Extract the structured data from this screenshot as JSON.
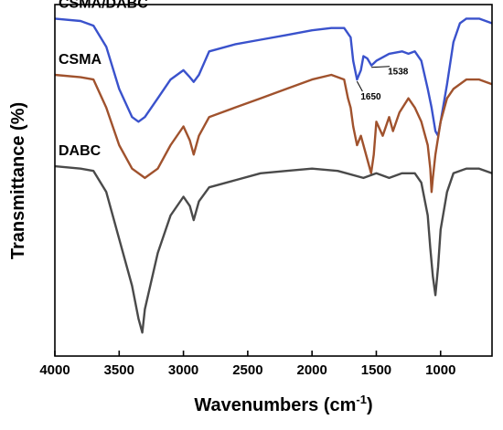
{
  "chart_data": {
    "type": "line",
    "title": "",
    "xlabel": "Wavenumbers (cm",
    "xlabel_sup": "-1",
    "xlabel_close": ")",
    "ylabel": "Transmittance (%)",
    "xlim": [
      4000,
      600
    ],
    "x_reversed": true,
    "y_ticks_shown": false,
    "xticks": [
      4000,
      3500,
      3000,
      2500,
      2000,
      1500,
      1000
    ],
    "xtick_labels": [
      "4000",
      "3500",
      "3000",
      "2500",
      "2000",
      "1500",
      "1000"
    ],
    "series": [
      {
        "name": "CSMA/DABC",
        "color": "#3a52cc",
        "points": [
          [
            4000,
            97
          ],
          [
            3800,
            96.5
          ],
          [
            3700,
            95.5
          ],
          [
            3600,
            91
          ],
          [
            3500,
            82
          ],
          [
            3400,
            76
          ],
          [
            3350,
            75
          ],
          [
            3300,
            76
          ],
          [
            3200,
            80
          ],
          [
            3100,
            84
          ],
          [
            3000,
            86
          ],
          [
            2950,
            84.5
          ],
          [
            2920,
            83.5
          ],
          [
            2880,
            85
          ],
          [
            2800,
            90
          ],
          [
            2600,
            91.5
          ],
          [
            2400,
            92.5
          ],
          [
            2200,
            93.5
          ],
          [
            2000,
            94.5
          ],
          [
            1850,
            95
          ],
          [
            1750,
            95
          ],
          [
            1700,
            93
          ],
          [
            1680,
            88
          ],
          [
            1650,
            84
          ],
          [
            1620,
            86
          ],
          [
            1600,
            89
          ],
          [
            1570,
            88.5
          ],
          [
            1538,
            87
          ],
          [
            1500,
            88
          ],
          [
            1400,
            89.5
          ],
          [
            1300,
            90
          ],
          [
            1250,
            89.5
          ],
          [
            1200,
            90
          ],
          [
            1150,
            88
          ],
          [
            1100,
            82
          ],
          [
            1070,
            78
          ],
          [
            1040,
            73
          ],
          [
            1020,
            72
          ],
          [
            1000,
            75
          ],
          [
            950,
            83
          ],
          [
            900,
            92
          ],
          [
            850,
            96
          ],
          [
            800,
            97
          ],
          [
            700,
            97
          ],
          [
            600,
            96
          ]
        ]
      },
      {
        "name": "CSMA",
        "color": "#a0522d",
        "points": [
          [
            4000,
            85
          ],
          [
            3800,
            84.5
          ],
          [
            3700,
            84
          ],
          [
            3600,
            78
          ],
          [
            3500,
            70
          ],
          [
            3400,
            65
          ],
          [
            3300,
            63
          ],
          [
            3200,
            65
          ],
          [
            3100,
            70
          ],
          [
            3000,
            74
          ],
          [
            2950,
            71
          ],
          [
            2920,
            68
          ],
          [
            2880,
            72
          ],
          [
            2800,
            76
          ],
          [
            2600,
            78
          ],
          [
            2400,
            80
          ],
          [
            2200,
            82
          ],
          [
            2000,
            84
          ],
          [
            1850,
            85
          ],
          [
            1750,
            84
          ],
          [
            1720,
            80
          ],
          [
            1700,
            78
          ],
          [
            1680,
            74
          ],
          [
            1650,
            70
          ],
          [
            1620,
            72
          ],
          [
            1600,
            70
          ],
          [
            1560,
            66
          ],
          [
            1540,
            64
          ],
          [
            1520,
            68
          ],
          [
            1500,
            75
          ],
          [
            1450,
            72
          ],
          [
            1400,
            76
          ],
          [
            1370,
            73
          ],
          [
            1320,
            77
          ],
          [
            1250,
            80
          ],
          [
            1200,
            78
          ],
          [
            1150,
            75
          ],
          [
            1100,
            70
          ],
          [
            1080,
            65
          ],
          [
            1070,
            60
          ],
          [
            1060,
            63
          ],
          [
            1040,
            68
          ],
          [
            1000,
            75
          ],
          [
            950,
            80
          ],
          [
            900,
            82
          ],
          [
            800,
            84
          ],
          [
            700,
            84
          ],
          [
            600,
            83
          ]
        ]
      },
      {
        "name": "DABC",
        "color": "#4a4a4a",
        "points": [
          [
            4000,
            65.5
          ],
          [
            3800,
            65
          ],
          [
            3700,
            64.5
          ],
          [
            3600,
            60
          ],
          [
            3500,
            50
          ],
          [
            3400,
            40
          ],
          [
            3350,
            33
          ],
          [
            3320,
            30
          ],
          [
            3300,
            35
          ],
          [
            3200,
            47
          ],
          [
            3100,
            55
          ],
          [
            3000,
            59
          ],
          [
            2950,
            57
          ],
          [
            2920,
            54
          ],
          [
            2880,
            58
          ],
          [
            2800,
            61
          ],
          [
            2600,
            62.5
          ],
          [
            2400,
            64
          ],
          [
            2200,
            64.5
          ],
          [
            2000,
            65
          ],
          [
            1800,
            64.5
          ],
          [
            1600,
            63
          ],
          [
            1500,
            64
          ],
          [
            1400,
            63
          ],
          [
            1300,
            64
          ],
          [
            1200,
            64
          ],
          [
            1150,
            62
          ],
          [
            1100,
            55
          ],
          [
            1080,
            48
          ],
          [
            1060,
            42
          ],
          [
            1040,
            38
          ],
          [
            1020,
            44
          ],
          [
            1000,
            52
          ],
          [
            950,
            60
          ],
          [
            900,
            64
          ],
          [
            800,
            65
          ],
          [
            700,
            65
          ],
          [
            600,
            64
          ]
        ]
      }
    ],
    "annotations": [
      {
        "label": "1650",
        "x": 1650
      },
      {
        "label": "1538",
        "x": 1538
      }
    ]
  }
}
